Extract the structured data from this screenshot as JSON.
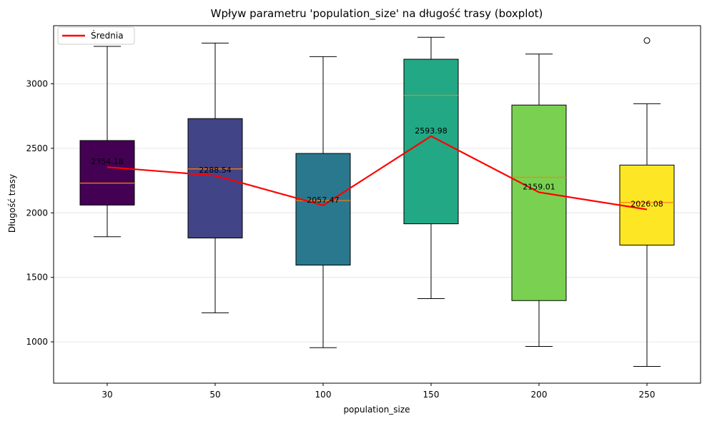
{
  "chart_data": {
    "type": "boxplot",
    "title": "Wpływ parametru 'population_size' na długość trasy (boxplot)",
    "xlabel": "population_size",
    "ylabel": "Długość trasy",
    "categories": [
      "30",
      "50",
      "100",
      "150",
      "200",
      "250"
    ],
    "ylim": [
      680,
      3450
    ],
    "yticks": [
      1000,
      1500,
      2000,
      2500,
      3000
    ],
    "grid": "y",
    "boxes": [
      {
        "category": "30",
        "whisker_low": 1815,
        "q1": 2060,
        "median": 2230,
        "q3": 2560,
        "whisker_high": 3290,
        "fliers": [],
        "color": "#440154"
      },
      {
        "category": "50",
        "whisker_low": 1225,
        "q1": 1805,
        "median": 2340,
        "q3": 2730,
        "whisker_high": 3315,
        "fliers": [],
        "color": "#414487"
      },
      {
        "category": "100",
        "whisker_low": 955,
        "q1": 1595,
        "median": 2095,
        "q3": 2460,
        "whisker_high": 3210,
        "fliers": [],
        "color": "#2a788e"
      },
      {
        "category": "150",
        "whisker_low": 1335,
        "q1": 1915,
        "median": 2910,
        "q3": 3190,
        "whisker_high": 3360,
        "fliers": [],
        "color": "#22a884"
      },
      {
        "category": "200",
        "whisker_low": 965,
        "q1": 1320,
        "median": 2275,
        "q3": 2835,
        "whisker_high": 3230,
        "fliers": [],
        "color": "#7ad151"
      },
      {
        "category": "250",
        "whisker_low": 810,
        "q1": 1750,
        "median": 2080,
        "q3": 2370,
        "whisker_high": 2845,
        "fliers": [
          3335
        ],
        "color": "#fde725"
      }
    ],
    "mean_series": {
      "name": "Średnia",
      "values": [
        2354.18,
        2288.54,
        2057.47,
        2593.98,
        2159.01,
        2026.08
      ],
      "labels": [
        "2354.18",
        "2288.54",
        "2057.47",
        "2593.98",
        "2159.01",
        "2026.08"
      ],
      "color": "#ff0000"
    },
    "median_color": "#ff7f0e",
    "legend": {
      "placement": "top-left",
      "entries": [
        "Średnia"
      ]
    }
  }
}
